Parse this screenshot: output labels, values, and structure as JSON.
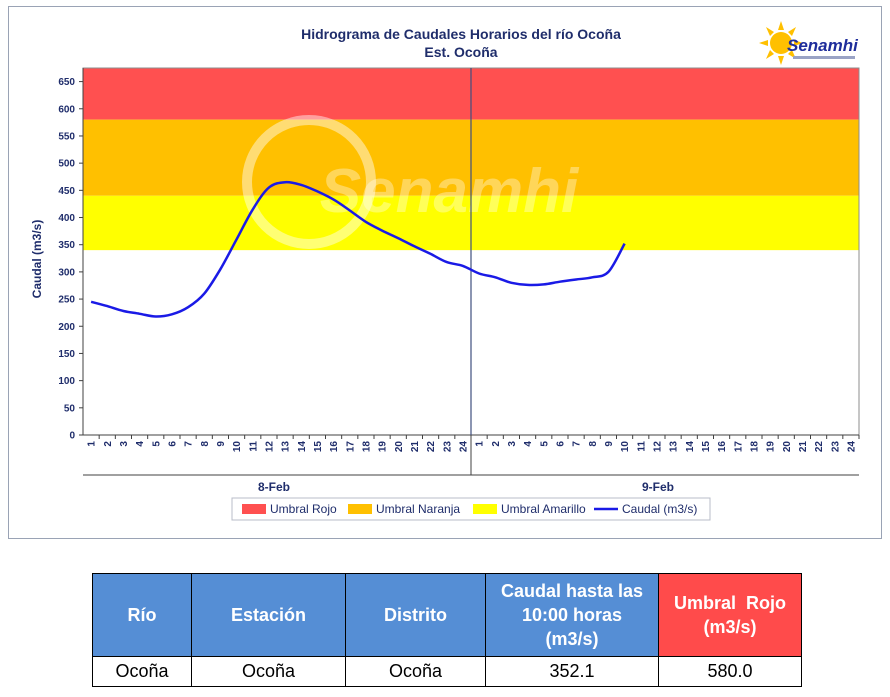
{
  "chart_data": {
    "type": "line",
    "title": "Hidrograma de Caudales Horarios del río Ocoña",
    "subtitle": "Est. Ocoña",
    "logo_text": "Senamhi",
    "watermark_text": "Senamhi",
    "ylabel": "Caudal  (m3/s)",
    "ylim": [
      0,
      675
    ],
    "yticks": [
      0,
      50,
      100,
      150,
      200,
      250,
      300,
      350,
      400,
      450,
      500,
      550,
      600,
      650
    ],
    "hour_labels": [
      "1",
      "2",
      "3",
      "4",
      "5",
      "6",
      "7",
      "8",
      "9",
      "10",
      "11",
      "12",
      "13",
      "14",
      "15",
      "16",
      "17",
      "18",
      "19",
      "20",
      "21",
      "22",
      "23",
      "24"
    ],
    "days": [
      "8-Feb",
      "9-Feb"
    ],
    "thresholds": [
      {
        "name": "Umbral Rojo",
        "from": 580,
        "to": 675,
        "color": "#ff5050"
      },
      {
        "name": "Umbral Naranja",
        "from": 440,
        "to": 580,
        "color": "#ffc000"
      },
      {
        "name": "Umbral Amarillo",
        "from": 340,
        "to": 440,
        "color": "#ffff00"
      }
    ],
    "series": [
      {
        "name": "Caudal (m3/s)",
        "color": "#1a1ae6",
        "x": [
          1,
          2,
          3,
          4,
          5,
          6,
          7,
          8,
          9,
          10,
          11,
          12,
          13,
          14,
          15,
          16,
          17,
          18,
          19,
          20,
          21,
          22,
          23,
          24,
          25,
          26,
          27,
          28,
          29,
          30,
          31,
          32,
          33,
          34
        ],
        "values": [
          245,
          237,
          228,
          223,
          218,
          222,
          235,
          260,
          305,
          360,
          415,
          455,
          465,
          460,
          448,
          433,
          413,
          392,
          376,
          362,
          347,
          333,
          318,
          311,
          297,
          290,
          280,
          276,
          277,
          282,
          286,
          290,
          300,
          352
        ]
      }
    ],
    "legend": [
      "Umbral Rojo",
      "Umbral Naranja",
      "Umbral Amarillo",
      "Caudal (m3/s)"
    ],
    "legend_position": "bottom",
    "grid": false
  },
  "table": {
    "headers": [
      "Río",
      "Estación",
      "Distrito",
      "Caudal hasta las 10:00 horas (m3/s)",
      "Umbral  Rojo (m3/s)"
    ],
    "header_lines": {
      "caudal": [
        "Caudal hasta las",
        "10:00 horas",
        "(m3/s)"
      ],
      "umbral": [
        "Umbral  Rojo",
        "(m3/s)"
      ]
    },
    "row": [
      "Ocoña",
      "Ocoña",
      "Ocoña",
      "352.1",
      "580.0"
    ]
  }
}
